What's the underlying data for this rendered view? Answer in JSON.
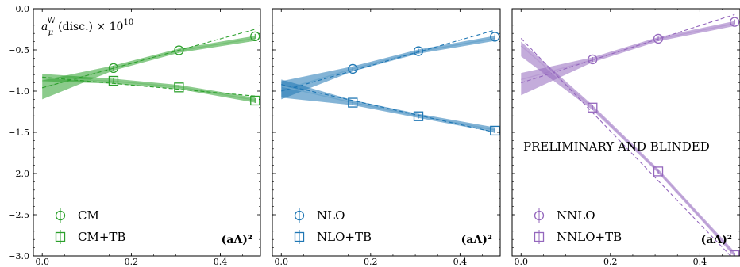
{
  "ylabel": "a_μ^W(disc.) × 10^10",
  "ylabel_parts": {
    "base": "a",
    "sub": "μ",
    "sup": "W",
    "rest": "(disc.) × 10",
    "exp": "10"
  },
  "chart_data": [
    {
      "type": "scatter",
      "xlabel": "(aΛ)²",
      "xlim": [
        -0.02,
        0.49
      ],
      "ylim": [
        -3.0,
        0.0
      ],
      "xticks": [
        0.0,
        0.2,
        0.4
      ],
      "yticks": [
        0.0,
        -0.5,
        -1.0,
        -1.5,
        -2.0,
        -2.5,
        -3.0
      ],
      "legend_position": "bottom-left",
      "color": "#2ca02c",
      "series": [
        {
          "name": "CM",
          "marker": "circle",
          "x": [
            0.16,
            0.307,
            0.478
          ],
          "y": [
            -0.72,
            -0.505,
            -0.335
          ],
          "fit_solid": [
            [
              0,
              -0.96
            ],
            [
              0.16,
              -0.72
            ],
            [
              0.307,
              -0.51
            ],
            [
              0.478,
              -0.36
            ]
          ],
          "fit_dashed": [
            [
              0,
              -0.96
            ],
            [
              0.478,
              -0.25
            ]
          ],
          "band_x0": [
            -0.87,
            -1.1
          ]
        },
        {
          "name": "CM+TB",
          "marker": "square",
          "x": [
            0.16,
            0.307,
            0.478
          ],
          "y": [
            -0.875,
            -0.955,
            -1.115
          ],
          "fit_solid": [
            [
              0,
              -0.84
            ],
            [
              0.16,
              -0.88
            ],
            [
              0.307,
              -0.95
            ],
            [
              0.478,
              -1.11
            ]
          ],
          "fit_dashed": [
            [
              0,
              -0.83
            ],
            [
              0.478,
              -1.06
            ]
          ],
          "band_x0": [
            -0.79,
            -0.88
          ]
        }
      ]
    },
    {
      "type": "scatter",
      "xlabel": "(aΛ)²",
      "xlim": [
        -0.02,
        0.49
      ],
      "ylim": [
        -3.0,
        0.0
      ],
      "xticks": [
        0.0,
        0.2,
        0.4
      ],
      "yticks": [
        0.0,
        -0.5,
        -1.0,
        -1.5,
        -2.0,
        -2.5,
        -3.0
      ],
      "legend_position": "bottom-left",
      "color": "#1f77b4",
      "series": [
        {
          "name": "NLO",
          "marker": "circle",
          "x": [
            0.16,
            0.307,
            0.478
          ],
          "y": [
            -0.73,
            -0.515,
            -0.34
          ],
          "fit_solid": [
            [
              0,
              -0.99
            ],
            [
              0.16,
              -0.73
            ],
            [
              0.307,
              -0.52
            ],
            [
              0.478,
              -0.36
            ]
          ],
          "fit_dashed": [
            [
              0,
              -1.0
            ],
            [
              0.478,
              -0.26
            ]
          ],
          "band_x0": [
            -0.88,
            -1.1
          ]
        },
        {
          "name": "NLO+TB",
          "marker": "square",
          "x": [
            0.16,
            0.307,
            0.478
          ],
          "y": [
            -1.14,
            -1.305,
            -1.48
          ],
          "fit_solid": [
            [
              0,
              -0.94
            ],
            [
              0.16,
              -1.14
            ],
            [
              0.307,
              -1.3
            ],
            [
              0.478,
              -1.47
            ]
          ],
          "fit_dashed": [
            [
              0,
              -0.92
            ],
            [
              0.478,
              -1.5
            ]
          ],
          "band_x0": [
            -0.86,
            -1.08
          ]
        }
      ]
    },
    {
      "type": "scatter",
      "xlabel": "(aΛ)²",
      "xlim": [
        -0.02,
        0.49
      ],
      "ylim": [
        -3.0,
        0.0
      ],
      "xticks": [
        0.0,
        0.2,
        0.4
      ],
      "yticks": [
        0.0,
        -0.5,
        -1.0,
        -1.5,
        -2.0,
        -2.5,
        -3.0
      ],
      "legend_position": "bottom-left",
      "annotation": "PRELIMINARY AND BLINDED",
      "color": "#9467bd",
      "series": [
        {
          "name": "NNLO",
          "marker": "circle",
          "x": [
            0.16,
            0.307,
            0.478
          ],
          "y": [
            -0.615,
            -0.365,
            -0.16
          ],
          "fit_solid": [
            [
              0,
              -0.86
            ],
            [
              0.16,
              -0.62
            ],
            [
              0.307,
              -0.37
            ],
            [
              0.478,
              -0.18
            ]
          ],
          "fit_dashed": [
            [
              0,
              -0.9
            ],
            [
              0.478,
              -0.07
            ]
          ],
          "band_x0": [
            -0.78,
            -1.05
          ]
        },
        {
          "name": "NNLO+TB",
          "marker": "square",
          "x": [
            0.16,
            0.307,
            0.478
          ],
          "y": [
            -1.2,
            -1.975,
            -2.99
          ],
          "fit_solid": [
            [
              0,
              -0.45
            ],
            [
              0.16,
              -1.2
            ],
            [
              0.307,
              -1.97
            ],
            [
              0.478,
              -2.98
            ]
          ],
          "fit_dashed": [
            [
              0,
              -0.36
            ],
            [
              0.478,
              -3.05
            ]
          ],
          "band_x0": [
            -0.4,
            -0.58
          ]
        }
      ]
    }
  ]
}
